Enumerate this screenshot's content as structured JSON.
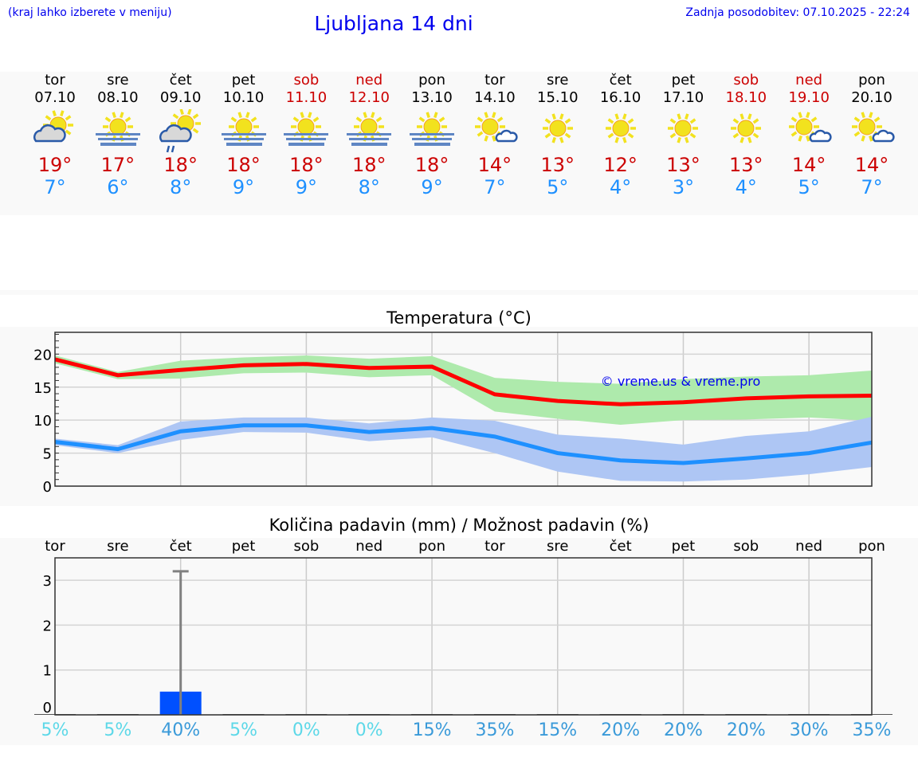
{
  "header": {
    "note": "(kraj lahko izberete v meniju)",
    "title": "Ljubljana 14 dni",
    "updated": "Zadnja posodobitev: 07.10.2025 - 22:24"
  },
  "days": [
    {
      "name": "tor",
      "date": "07.10",
      "max": "19°",
      "min": "7°",
      "icon": "partly-cloudy-sun-icon",
      "weekend": false
    },
    {
      "name": "sre",
      "date": "08.10",
      "max": "17°",
      "min": "6°",
      "icon": "sun-fog-icon",
      "weekend": false
    },
    {
      "name": "čet",
      "date": "09.10",
      "max": "18°",
      "min": "8°",
      "icon": "cloud-sun-rain-icon",
      "weekend": false
    },
    {
      "name": "pet",
      "date": "10.10",
      "max": "18°",
      "min": "9°",
      "icon": "sun-fog-icon",
      "weekend": false
    },
    {
      "name": "sob",
      "date": "11.10",
      "max": "18°",
      "min": "9°",
      "icon": "sun-fog-icon",
      "weekend": true
    },
    {
      "name": "ned",
      "date": "12.10",
      "max": "18°",
      "min": "8°",
      "icon": "sun-fog-icon",
      "weekend": true
    },
    {
      "name": "pon",
      "date": "13.10",
      "max": "18°",
      "min": "9°",
      "icon": "sun-fog-icon",
      "weekend": false
    },
    {
      "name": "tor",
      "date": "14.10",
      "max": "14°",
      "min": "7°",
      "icon": "sun-small-cloud-icon",
      "weekend": false
    },
    {
      "name": "sre",
      "date": "15.10",
      "max": "13°",
      "min": "5°",
      "icon": "sun-icon",
      "weekend": false
    },
    {
      "name": "čet",
      "date": "16.10",
      "max": "12°",
      "min": "4°",
      "icon": "sun-icon",
      "weekend": false
    },
    {
      "name": "pet",
      "date": "17.10",
      "max": "13°",
      "min": "3°",
      "icon": "sun-icon",
      "weekend": false
    },
    {
      "name": "sob",
      "date": "18.10",
      "max": "13°",
      "min": "4°",
      "icon": "sun-icon",
      "weekend": true
    },
    {
      "name": "ned",
      "date": "19.10",
      "max": "14°",
      "min": "5°",
      "icon": "sun-small-cloud-icon",
      "weekend": true
    },
    {
      "name": "pon",
      "date": "20.10",
      "max": "14°",
      "min": "7°",
      "icon": "sun-small-cloud-icon",
      "weekend": false
    }
  ],
  "chart_data": [
    {
      "type": "line",
      "title": "Temperatura (°C)",
      "ylim": [
        0,
        23.3
      ],
      "yticks": [
        0,
        5,
        10,
        15,
        20
      ],
      "grid": true,
      "watermark": "© vreme.us & vreme.pro",
      "x": [
        "07.10",
        "08.10",
        "09.10",
        "10.10",
        "11.10",
        "12.10",
        "13.10",
        "14.10",
        "15.10",
        "16.10",
        "17.10",
        "18.10",
        "19.10",
        "20.10"
      ],
      "series": [
        {
          "kind": "max",
          "color": "#ff0000",
          "band_color": "#aeeaac",
          "values": [
            19.2,
            16.8,
            17.6,
            18.3,
            18.5,
            17.9,
            18.1,
            13.9,
            12.9,
            12.4,
            12.7,
            13.3,
            13.6,
            13.7
          ],
          "band_upper": [
            19.8,
            17.3,
            19.0,
            19.5,
            19.8,
            19.3,
            19.7,
            16.4,
            15.8,
            15.5,
            16.2,
            16.6,
            16.8,
            17.5
          ],
          "band_lower": [
            18.6,
            16.2,
            16.3,
            17.1,
            17.2,
            16.5,
            16.8,
            11.3,
            10.2,
            9.3,
            10.0,
            10.1,
            10.4,
            9.9
          ]
        },
        {
          "kind": "min",
          "color": "#1e90ff",
          "band_color": "#aec6f4",
          "values": [
            6.7,
            5.6,
            8.3,
            9.2,
            9.2,
            8.2,
            8.8,
            7.5,
            5.0,
            3.9,
            3.5,
            4.2,
            5.0,
            6.6
          ],
          "band_upper": [
            7.2,
            6.2,
            9.8,
            10.4,
            10.4,
            9.5,
            10.4,
            9.9,
            7.8,
            7.2,
            6.3,
            7.6,
            8.3,
            10.5
          ],
          "band_lower": [
            6.2,
            5.0,
            7.0,
            8.2,
            8.1,
            6.8,
            7.4,
            5.0,
            2.2,
            0.8,
            0.7,
            1.0,
            1.8,
            2.9
          ]
        }
      ]
    },
    {
      "type": "bar",
      "title": "Količina padavin (mm) / Možnost padavin (%)",
      "ylim": [
        0,
        3.5
      ],
      "yticks": [
        0,
        1,
        2,
        3
      ],
      "grid": true,
      "categories": [
        "tor",
        "sre",
        "čet",
        "pet",
        "sob",
        "ned",
        "pon",
        "tor",
        "sre",
        "čet",
        "pet",
        "sob",
        "ned",
        "pon"
      ],
      "values": [
        0,
        0,
        0.5,
        0,
        0,
        0,
        0,
        0,
        0,
        0,
        0,
        0,
        0,
        0
      ],
      "error_upper": [
        0,
        0,
        3.2,
        0,
        0,
        0,
        0,
        0,
        0,
        0,
        0,
        0,
        0,
        0
      ],
      "bar_color": "#0050ff",
      "probability": [
        "5%",
        "5%",
        "40%",
        "5%",
        "0%",
        "0%",
        "15%",
        "35%",
        "15%",
        "20%",
        "20%",
        "20%",
        "30%",
        "35%"
      ],
      "probability_values": [
        5,
        5,
        40,
        5,
        0,
        0,
        15,
        35,
        15,
        20,
        20,
        20,
        30,
        35
      ],
      "colors": {
        "low": "#5dd8e8",
        "high": "#3a9ad9"
      }
    }
  ]
}
